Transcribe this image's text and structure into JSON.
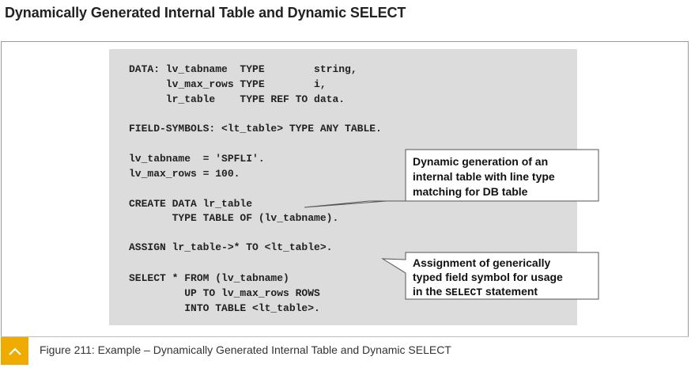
{
  "page_title": "Dynamically Generated Internal Table and Dynamic SELECT",
  "code_lines": [
    "DATA: lv_tabname  TYPE        string,",
    "      lv_max_rows TYPE        i,",
    "      lr_table    TYPE REF TO data.",
    "FIELD-SYMBOLS: <lt_table> TYPE ANY TABLE.",
    "lv_tabname  = 'SPFLI'.",
    "lv_max_rows = 100.",
    "CREATE DATA lr_table",
    "       TYPE TABLE OF (lv_tabname).",
    "ASSIGN lr_table->* TO <lt_table>.",
    "SELECT * FROM (lv_tabname)",
    "         UP TO lv_max_rows ROWS",
    "         INTO TABLE <lt_table>."
  ],
  "callouts": {
    "dynamic_generation": {
      "line1": "Dynamic generation of an",
      "line2": "internal table with line type",
      "line3": "matching for DB table"
    },
    "assignment": {
      "line1": "Assignment of generically",
      "line2": "typed field symbol for usage",
      "line3_prefix": "in the ",
      "line3_code": "SELECT",
      "line3_suffix": " statement"
    }
  },
  "caption": "Figure 211: Example – Dynamically Generated Internal Table and Dynamic SELECT",
  "icons": {
    "caption_toggle": "chevron-up-icon"
  },
  "colors": {
    "accent": "#f0ab00",
    "code_background": "#dcdcdc"
  }
}
